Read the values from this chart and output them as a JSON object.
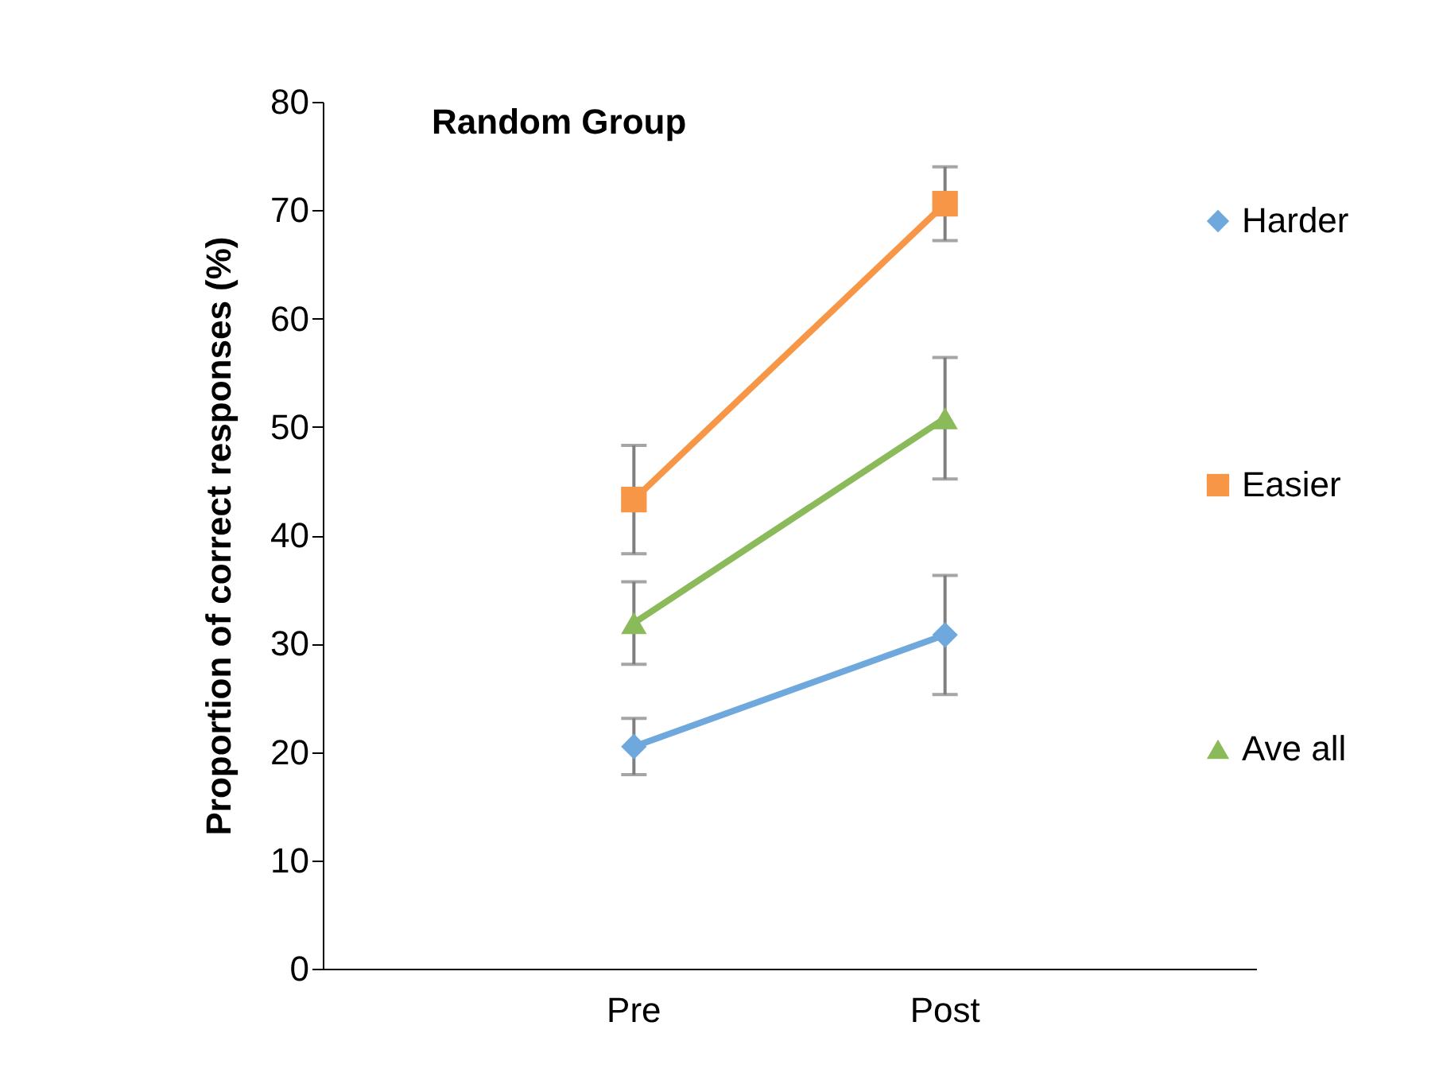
{
  "chart_data": {
    "type": "line",
    "title": "Random Group",
    "ylabel": "Proportion of correct responses (%)",
    "categories": [
      "Pre",
      "Post"
    ],
    "series": [
      {
        "name": "Harder",
        "color": "#6fa8dc",
        "marker": "diamond",
        "values": [
          20.5,
          30.8
        ],
        "errors": [
          2.6,
          5.5
        ]
      },
      {
        "name": "Easier",
        "color": "#f79646",
        "marker": "square",
        "values": [
          43.3,
          70.6
        ],
        "errors": [
          5,
          3.4
        ]
      },
      {
        "name": "Ave all",
        "color": "#8bba5a",
        "marker": "triangle",
        "values": [
          31.9,
          50.8
        ],
        "errors": [
          3.8,
          5.6
        ]
      }
    ],
    "ylim": [
      0,
      80
    ],
    "yticks": [
      0,
      10,
      20,
      30,
      40,
      50,
      60,
      70,
      80
    ],
    "grid": false,
    "legend": "right"
  }
}
